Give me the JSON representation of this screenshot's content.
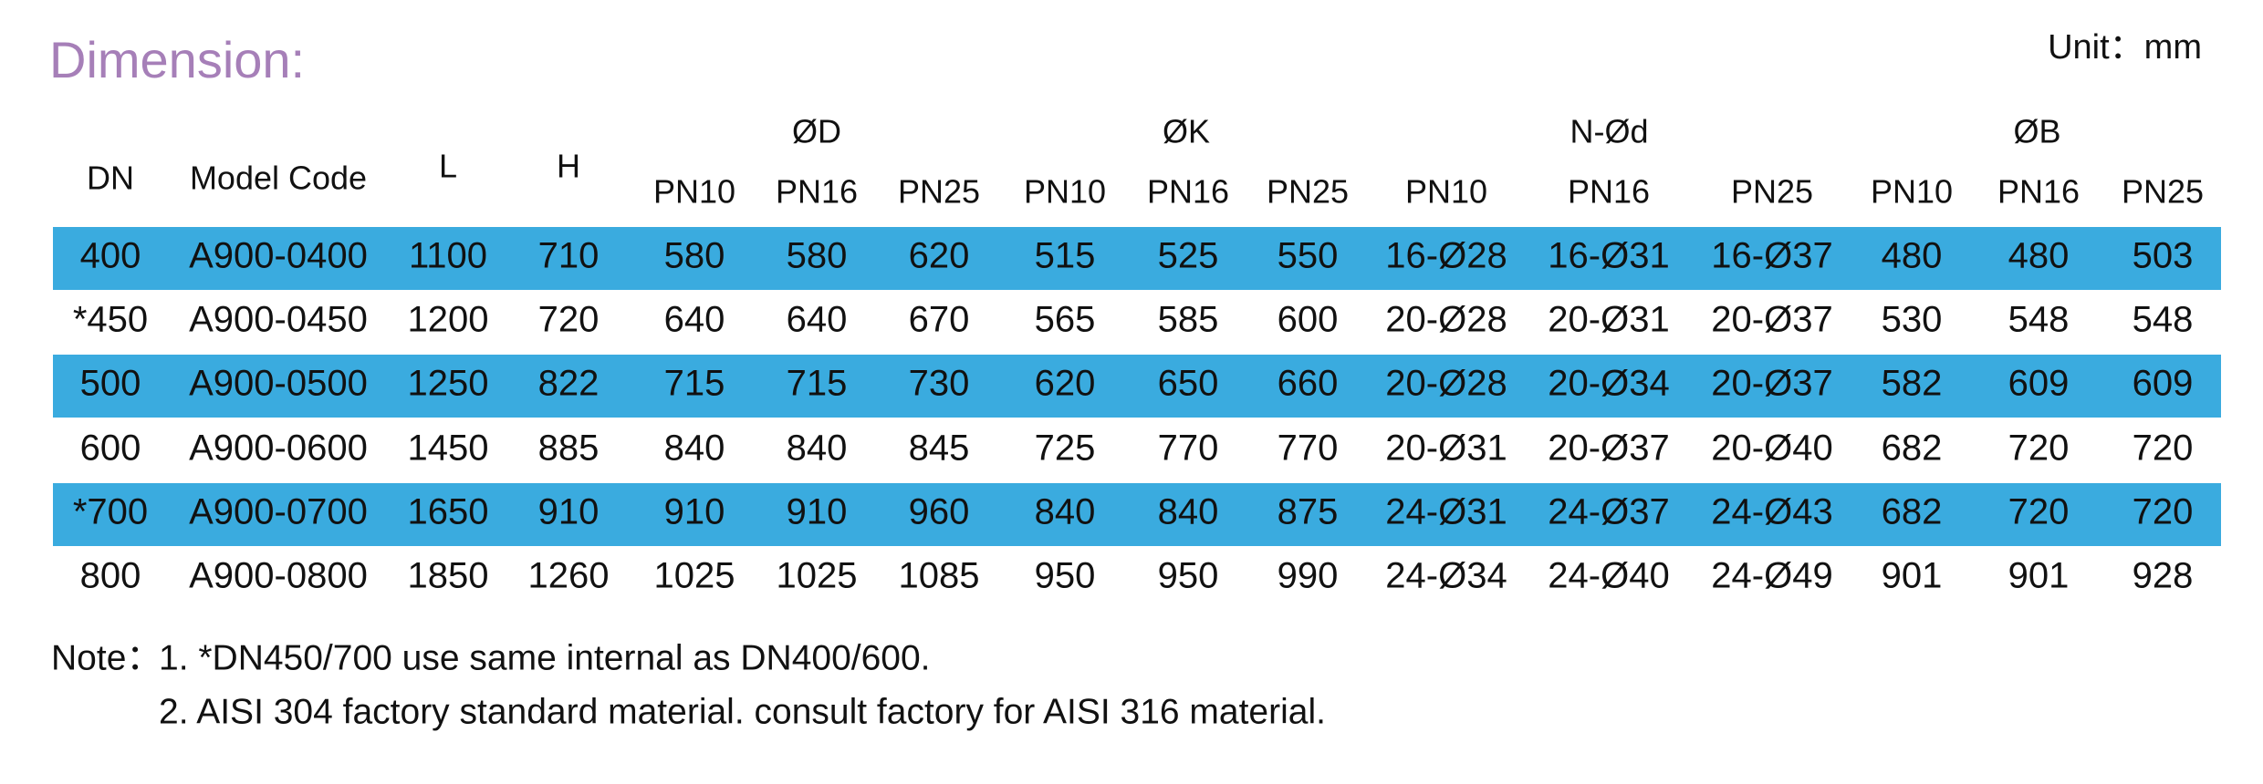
{
  "header": {
    "title": "Dimension:",
    "unit": "Unit：mm"
  },
  "table": {
    "columns": [
      "DN",
      "Model Code",
      "L",
      "H"
    ],
    "groups": [
      {
        "label": "ØD",
        "sub": [
          "PN10",
          "PN16",
          "PN25"
        ]
      },
      {
        "label": "ØK",
        "sub": [
          "PN10",
          "PN16",
          "PN25"
        ]
      },
      {
        "label": "N-Ød",
        "sub": [
          "PN10",
          "PN16",
          "PN25"
        ]
      },
      {
        "label": "ØB",
        "sub": [
          "PN10",
          "PN16",
          "PN25"
        ]
      }
    ],
    "rows": [
      [
        "400",
        "A900-0400",
        "1100",
        "710",
        "580",
        "580",
        "620",
        "515",
        "525",
        "550",
        "16-Ø28",
        "16-Ø31",
        "16-Ø37",
        "480",
        "480",
        "503"
      ],
      [
        "*450",
        "A900-0450",
        "1200",
        "720",
        "640",
        "640",
        "670",
        "565",
        "585",
        "600",
        "20-Ø28",
        "20-Ø31",
        "20-Ø37",
        "530",
        "548",
        "548"
      ],
      [
        "500",
        "A900-0500",
        "1250",
        "822",
        "715",
        "715",
        "730",
        "620",
        "650",
        "660",
        "20-Ø28",
        "20-Ø34",
        "20-Ø37",
        "582",
        "609",
        "609"
      ],
      [
        "600",
        "A900-0600",
        "1450",
        "885",
        "840",
        "840",
        "845",
        "725",
        "770",
        "770",
        "20-Ø31",
        "20-Ø37",
        "20-Ø40",
        "682",
        "720",
        "720"
      ],
      [
        "*700",
        "A900-0700",
        "1650",
        "910",
        "910",
        "910",
        "960",
        "840",
        "840",
        "875",
        "24-Ø31",
        "24-Ø37",
        "24-Ø43",
        "682",
        "720",
        "720"
      ],
      [
        "800",
        "A900-0800",
        "1850",
        "1260",
        "1025",
        "1025",
        "1085",
        "950",
        "950",
        "990",
        "24-Ø34",
        "24-Ø40",
        "24-Ø49",
        "901",
        "901",
        "928"
      ]
    ]
  },
  "notes": {
    "label": "Note：",
    "items": [
      "1. *DN450/700 use same internal as DN400/600.",
      "2. AISI 304 factory standard material. consult factory for AISI 316 material."
    ]
  }
}
